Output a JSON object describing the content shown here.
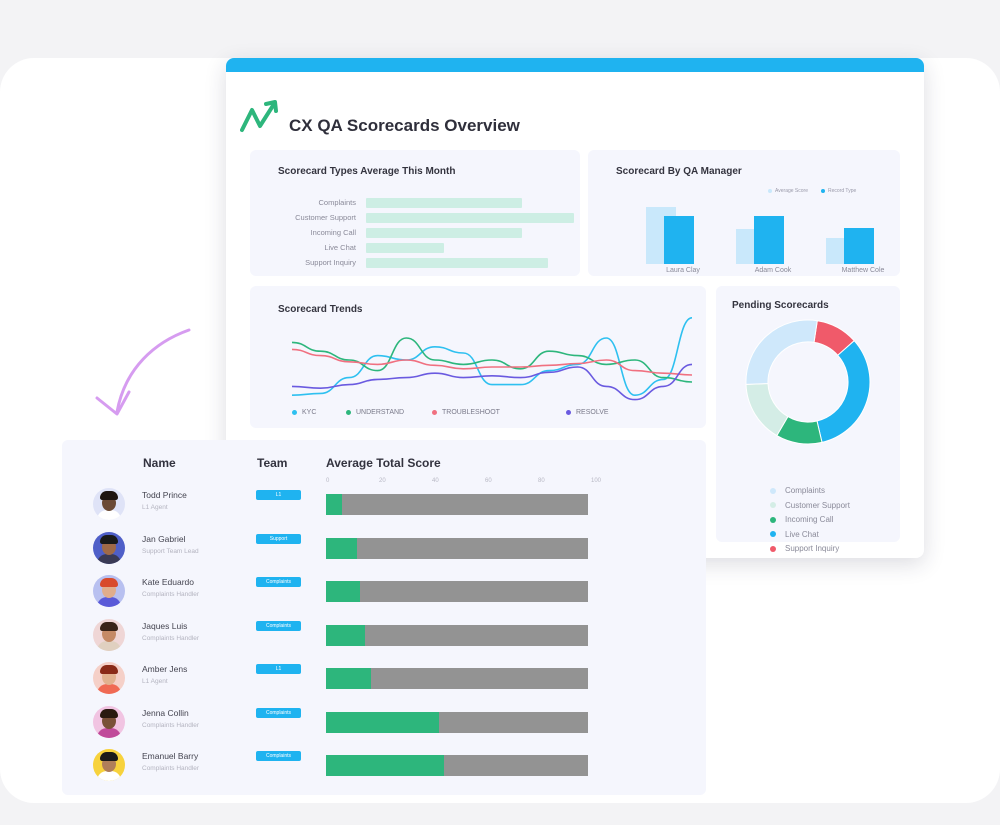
{
  "dashboard": {
    "title": "CX QA Scorecards Overview",
    "accent_color": "#1fb3f0",
    "logo_icon": "trend-arrow-logo-icon"
  },
  "types_chart": {
    "title": "Scorecard Types Average This Month",
    "categories": [
      "Complaints",
      "Customer Support",
      "Incoming Call",
      "Live Chat",
      "Support Inquiry"
    ],
    "values": [
      0.6,
      0.8,
      0.6,
      0.3,
      0.7
    ],
    "bar_color": "#cdeee4"
  },
  "manager_chart": {
    "title": "Scorecard By QA Manager",
    "legend": [
      "Average Score",
      "Record Type"
    ],
    "colors": [
      "#c9e8fb",
      "#1fb3f0"
    ],
    "managers": [
      {
        "name": "Laura Clay",
        "values": [
          0.82,
          0.68
        ]
      },
      {
        "name": "Adam Cook",
        "values": [
          0.5,
          0.68
        ]
      },
      {
        "name": "Matthew Cole",
        "values": [
          0.37,
          0.52
        ]
      }
    ]
  },
  "trends_chart": {
    "title": "Scorecard Trends",
    "series": [
      {
        "name": "KYC",
        "color": "#2ec0f0",
        "values": [
          0.1,
          0.12,
          0.3,
          0.55,
          0.5,
          0.65,
          0.58,
          0.22,
          0.22,
          0.38,
          0.45,
          0.75,
          0.1,
          0.28,
          0.98
        ]
      },
      {
        "name": "UNDERSTAND",
        "color": "#2db67c",
        "values": [
          0.7,
          0.6,
          0.5,
          0.38,
          0.75,
          0.5,
          0.45,
          0.5,
          0.4,
          0.6,
          0.55,
          0.45,
          0.5,
          0.3,
          0.25
        ]
      },
      {
        "name": "TROUBLESHOOT",
        "color": "#f07080",
        "values": [
          0.62,
          0.55,
          0.48,
          0.45,
          0.5,
          0.44,
          0.4,
          0.42,
          0.42,
          0.44,
          0.46,
          0.5,
          0.38,
          0.35,
          0.33
        ]
      },
      {
        "name": "RESOLVE",
        "color": "#6a5ae0",
        "values": [
          0.2,
          0.18,
          0.22,
          0.28,
          0.3,
          0.35,
          0.3,
          0.32,
          0.3,
          0.36,
          0.42,
          0.2,
          0.05,
          0.2,
          0.45
        ]
      }
    ]
  },
  "pending_chart": {
    "title": "Pending Scorecards",
    "slices": [
      {
        "label": "Complaints",
        "value": 28,
        "color": "#cfe8fb"
      },
      {
        "label": "Customer Support",
        "value": 16,
        "color": "#d4ede6"
      },
      {
        "label": "Incoming Call",
        "value": 12,
        "color": "#2db67c"
      },
      {
        "label": "Live Chat",
        "value": 33,
        "color": "#1fb3f0"
      },
      {
        "label": "Support Inquiry",
        "value": 11,
        "color": "#f05a6a"
      }
    ]
  },
  "table": {
    "headers": {
      "name": "Name",
      "team": "Team",
      "score": "Average Total Score"
    },
    "ticks": [
      "0",
      "20",
      "40",
      "60",
      "80",
      "100"
    ],
    "score_fill_color": "#2db67c",
    "score_track_color": "#939393",
    "rows": [
      {
        "name": "Todd Prince",
        "role": "L1 Agent",
        "team": "L1",
        "score": 0.06,
        "skin": "#6b4a36",
        "hair": "#1e1410",
        "shirt": "#ffffff",
        "bg": "#dfe3f7"
      },
      {
        "name": "Jan Gabriel",
        "role": "Support Team Lead",
        "team": "Support",
        "score": 0.12,
        "skin": "#a06a48",
        "hair": "#1a1a1a",
        "shirt": "#3a3a55",
        "bg": "#4f5fc8"
      },
      {
        "name": "Kate Eduardo",
        "role": "Complaints Handler",
        "team": "Complaints",
        "score": 0.13,
        "skin": "#e0ad8c",
        "hair": "#d84a2c",
        "shirt": "#5a5ad8",
        "bg": "#b8c0f0"
      },
      {
        "name": "Jaques Luis",
        "role": "Complaints Handler",
        "team": "Complaints",
        "score": 0.15,
        "skin": "#c58a66",
        "hair": "#3a2418",
        "shirt": "#e0d0c0",
        "bg": "#efd6d6"
      },
      {
        "name": "Amber Jens",
        "role": "L1 Agent",
        "team": "L1",
        "score": 0.17,
        "skin": "#e2b290",
        "hair": "#8a2a18",
        "shirt": "#f06a54",
        "bg": "#f5d0c8"
      },
      {
        "name": "Jenna Collin",
        "role": "Complaints Handler",
        "team": "Complaints",
        "score": 0.43,
        "skin": "#7a5038",
        "hair": "#2a1a10",
        "shirt": "#c04a9a",
        "bg": "#f1c4e2"
      },
      {
        "name": "Emanuel Barry",
        "role": "Complaints Handler",
        "team": "Complaints",
        "score": 0.45,
        "skin": "#b07e5a",
        "hair": "#1a1a1a",
        "shirt": "#ffffff",
        "bg": "#f7d23c"
      }
    ]
  }
}
